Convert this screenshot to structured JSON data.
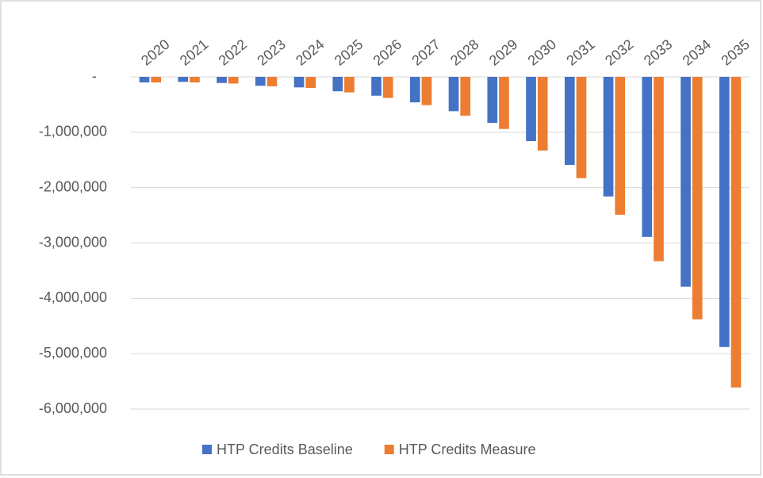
{
  "chart_data": {
    "type": "bar",
    "categories": [
      "2020",
      "2021",
      "2022",
      "2023",
      "2024",
      "2025",
      "2026",
      "2027",
      "2028",
      "2029",
      "2030",
      "2031",
      "2032",
      "2033",
      "2034",
      "2035"
    ],
    "series": [
      {
        "name": "HTP Credits Baseline",
        "color": "#4472c4",
        "values": [
          -100000,
          -90000,
          -110000,
          -160000,
          -190000,
          -260000,
          -340000,
          -460000,
          -620000,
          -830000,
          -1160000,
          -1590000,
          -2160000,
          -2890000,
          -3790000,
          -4880000
        ]
      },
      {
        "name": "HTP Credits Measure",
        "color": "#ed7d31",
        "values": [
          -100000,
          -100000,
          -120000,
          -170000,
          -200000,
          -280000,
          -380000,
          -510000,
          -700000,
          -940000,
          -1330000,
          -1830000,
          -2490000,
          -3330000,
          -4380000,
          -5610000
        ]
      }
    ],
    "ylim": [
      -6000000,
      0
    ],
    "yticks": [
      {
        "value": 0,
        "label": "-"
      },
      {
        "value": -1000000,
        "label": "-1,000,000"
      },
      {
        "value": -2000000,
        "label": "-2,000,000"
      },
      {
        "value": -3000000,
        "label": "-3,000,000"
      },
      {
        "value": -4000000,
        "label": "-4,000,000"
      },
      {
        "value": -5000000,
        "label": "-5,000,000"
      },
      {
        "value": -6000000,
        "label": "-6,000,000"
      }
    ],
    "grid": true,
    "legend": "bottom"
  }
}
